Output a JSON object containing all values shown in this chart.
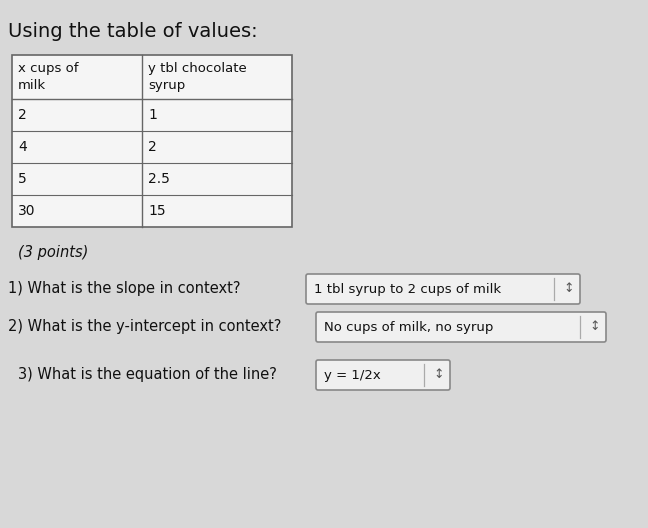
{
  "title": "Using the table of values:",
  "title_fontsize": 14,
  "table_headers": [
    "x cups of\nmilk",
    "y tbl chocolate\nsyrup"
  ],
  "table_rows": [
    [
      "2",
      "1"
    ],
    [
      "4",
      "2"
    ],
    [
      "5",
      "2.5"
    ],
    [
      "30",
      "15"
    ]
  ],
  "points_label": "(3 points)",
  "q1_text": "1) What is the slope in context?",
  "q1_answer": "1 tbl syrup to 2 cups of milk",
  "q2_text": "2) What is the y-intercept in context?",
  "q2_answer": "No cups of milk, no syrup",
  "q3_text": "3) What is the equation of the line?",
  "q3_answer": "y = 1/2x",
  "background_color": "#d8d8d8",
  "table_bg": "#f0f0f0",
  "text_color": "#111111",
  "box_color": "#f0f0f0",
  "box_border": "#999999",
  "font_size_body": 10.5,
  "font_size_table": 10,
  "font_size_header": 9.5
}
